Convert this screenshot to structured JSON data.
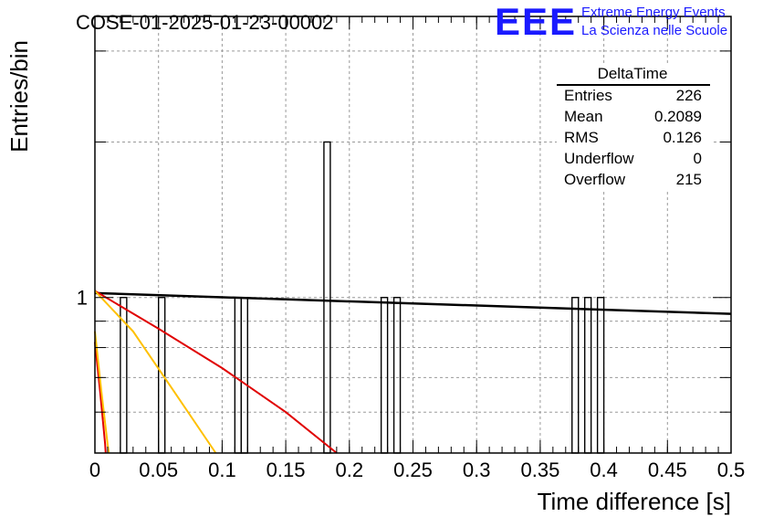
{
  "header": {
    "run_title": "COSE-01-2025-01-23-00002",
    "logo_text": "EEE",
    "logo_line1": "Extreme Energy Events",
    "logo_line2": "La Scienza nelle Scuole",
    "logo_color": "#1a1aff"
  },
  "stats_box": {
    "title": "DeltaTime",
    "rows": [
      {
        "label": "Entries",
        "value": "226"
      },
      {
        "label": "Mean",
        "value": "0.2089"
      },
      {
        "label": "RMS",
        "value": "0.126"
      },
      {
        "label": "Underflow",
        "value": "0"
      },
      {
        "label": "Overflow",
        "value": "215"
      }
    ]
  },
  "chart_data": {
    "type": "bar",
    "title": "COSE-01-2025-01-23-00002",
    "xlabel": "Time difference [s]",
    "ylabel": "Entries/bin",
    "xlim": [
      0,
      0.5
    ],
    "ylim": [
      0.5,
      3.5
    ],
    "yscale": "log",
    "grid": true,
    "x_ticks": [
      "0",
      "0.05",
      "0.1",
      "0.15",
      "0.2",
      "0.25",
      "0.3",
      "0.35",
      "0.4",
      "0.45",
      "0.5"
    ],
    "y_ticks": [
      "1"
    ],
    "bin_width": 0.005,
    "histogram_bins": [
      {
        "x_low": 0.02,
        "value": 1
      },
      {
        "x_low": 0.05,
        "value": 1
      },
      {
        "x_low": 0.11,
        "value": 1
      },
      {
        "x_low": 0.115,
        "value": 1
      },
      {
        "x_low": 0.18,
        "value": 2
      },
      {
        "x_low": 0.225,
        "value": 1
      },
      {
        "x_low": 0.235,
        "value": 1
      },
      {
        "x_low": 0.375,
        "value": 1
      },
      {
        "x_low": 0.385,
        "value": 1
      },
      {
        "x_low": 0.395,
        "value": 1
      }
    ],
    "fit_curves": [
      {
        "color": "#000000",
        "points": [
          [
            0,
            1.02
          ],
          [
            0.5,
            0.93
          ]
        ]
      },
      {
        "color": "#e00000",
        "points": [
          [
            0,
            1.03
          ],
          [
            0.05,
            0.87
          ],
          [
            0.1,
            0.73
          ],
          [
            0.15,
            0.6
          ],
          [
            0.19,
            0.5
          ]
        ]
      },
      {
        "color": "#ffc000",
        "points": [
          [
            0,
            1.03
          ],
          [
            0.03,
            0.86
          ],
          [
            0.06,
            0.67
          ],
          [
            0.095,
            0.5
          ]
        ]
      },
      {
        "color": "#e00000",
        "points": [
          [
            0,
            0.82
          ],
          [
            0.004,
            0.66
          ],
          [
            0.008,
            0.52
          ],
          [
            0.0085,
            0.5
          ]
        ]
      },
      {
        "color": "#ffc000",
        "points": [
          [
            0,
            0.86
          ],
          [
            0.005,
            0.66
          ],
          [
            0.01,
            0.52
          ],
          [
            0.011,
            0.5
          ]
        ]
      }
    ]
  }
}
